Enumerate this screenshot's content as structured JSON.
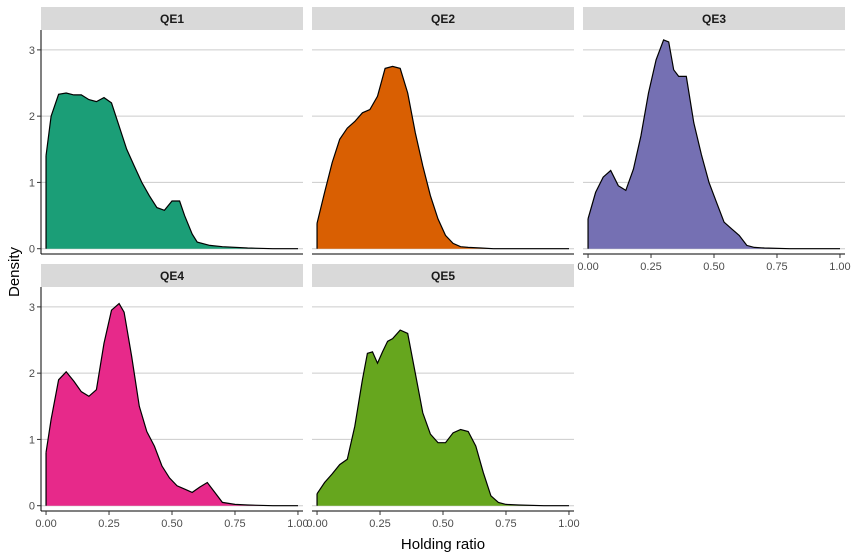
{
  "chart_data": {
    "type": "area",
    "xlabel": "Holding ratio",
    "ylabel": "Density",
    "xlim": [
      -0.02,
      1.02
    ],
    "ylim": [
      -0.08,
      3.3
    ],
    "x_ticks": [
      0,
      0.25,
      0.5,
      0.75,
      1.0
    ],
    "x_tick_labels": [
      "0.00",
      "0.25",
      "0.50",
      "0.75",
      "1.00"
    ],
    "y_ticks": [
      0,
      1,
      2,
      3
    ],
    "y_tick_labels": [
      "0",
      "1",
      "2",
      "3"
    ],
    "grid": "horizontal major",
    "legend": "none",
    "facet_layout": "3 columns x 2 rows",
    "panels": [
      {
        "label": "QE1",
        "color": "#1B9E77",
        "x": [
          0.0,
          0.02,
          0.05,
          0.08,
          0.11,
          0.14,
          0.17,
          0.2,
          0.23,
          0.26,
          0.29,
          0.32,
          0.35,
          0.38,
          0.41,
          0.44,
          0.47,
          0.5,
          0.53,
          0.55,
          0.58,
          0.6,
          0.65,
          0.7,
          0.8,
          0.9,
          1.0
        ],
        "y": [
          1.4,
          2.0,
          2.33,
          2.35,
          2.32,
          2.32,
          2.25,
          2.22,
          2.28,
          2.2,
          1.85,
          1.5,
          1.25,
          1.0,
          0.8,
          0.62,
          0.58,
          0.72,
          0.72,
          0.5,
          0.22,
          0.1,
          0.05,
          0.03,
          0.01,
          0.0,
          0.0
        ]
      },
      {
        "label": "QE2",
        "color": "#D95F02",
        "x": [
          0.0,
          0.03,
          0.06,
          0.09,
          0.12,
          0.15,
          0.18,
          0.21,
          0.24,
          0.27,
          0.3,
          0.33,
          0.36,
          0.39,
          0.42,
          0.45,
          0.48,
          0.51,
          0.54,
          0.57,
          0.6,
          0.65,
          0.7,
          0.8,
          0.9,
          1.0
        ],
        "y": [
          0.38,
          0.85,
          1.3,
          1.65,
          1.82,
          1.92,
          2.05,
          2.1,
          2.3,
          2.72,
          2.75,
          2.72,
          2.35,
          1.75,
          1.25,
          0.8,
          0.45,
          0.2,
          0.08,
          0.03,
          0.02,
          0.01,
          0.0,
          0.0,
          0.0,
          0.0
        ]
      },
      {
        "label": "QE3",
        "color": "#7570B3",
        "x": [
          0.0,
          0.03,
          0.06,
          0.09,
          0.12,
          0.15,
          0.18,
          0.21,
          0.24,
          0.27,
          0.3,
          0.32,
          0.34,
          0.36,
          0.39,
          0.42,
          0.45,
          0.48,
          0.51,
          0.54,
          0.57,
          0.6,
          0.63,
          0.66,
          0.7,
          0.8,
          0.9,
          1.0
        ],
        "y": [
          0.45,
          0.85,
          1.08,
          1.18,
          0.95,
          0.88,
          1.2,
          1.7,
          2.35,
          2.85,
          3.15,
          3.12,
          2.7,
          2.6,
          2.6,
          1.9,
          1.42,
          1.0,
          0.7,
          0.4,
          0.3,
          0.2,
          0.05,
          0.02,
          0.01,
          0.0,
          0.0,
          0.0
        ]
      },
      {
        "label": "QE4",
        "color": "#E7298A",
        "x": [
          0.0,
          0.02,
          0.05,
          0.08,
          0.11,
          0.14,
          0.17,
          0.2,
          0.23,
          0.26,
          0.29,
          0.31,
          0.34,
          0.37,
          0.4,
          0.43,
          0.46,
          0.49,
          0.52,
          0.55,
          0.58,
          0.61,
          0.64,
          0.67,
          0.7,
          0.75,
          0.8,
          0.9,
          1.0
        ],
        "y": [
          0.8,
          1.3,
          1.9,
          2.02,
          1.88,
          1.72,
          1.65,
          1.75,
          2.45,
          2.95,
          3.05,
          2.92,
          2.25,
          1.5,
          1.12,
          0.9,
          0.6,
          0.42,
          0.3,
          0.25,
          0.2,
          0.28,
          0.35,
          0.2,
          0.05,
          0.02,
          0.01,
          0.0,
          0.0
        ]
      },
      {
        "label": "QE5",
        "color": "#66A61E",
        "x": [
          0.0,
          0.03,
          0.06,
          0.09,
          0.12,
          0.15,
          0.18,
          0.2,
          0.22,
          0.24,
          0.26,
          0.28,
          0.3,
          0.33,
          0.36,
          0.39,
          0.42,
          0.45,
          0.48,
          0.51,
          0.54,
          0.57,
          0.6,
          0.63,
          0.66,
          0.69,
          0.72,
          0.75,
          0.8,
          0.9,
          1.0
        ],
        "y": [
          0.18,
          0.35,
          0.48,
          0.62,
          0.7,
          1.2,
          1.9,
          2.3,
          2.32,
          2.15,
          2.32,
          2.48,
          2.52,
          2.65,
          2.6,
          2.0,
          1.4,
          1.08,
          0.95,
          0.95,
          1.1,
          1.15,
          1.12,
          0.9,
          0.5,
          0.15,
          0.05,
          0.02,
          0.01,
          0.0,
          0.0
        ]
      }
    ]
  }
}
